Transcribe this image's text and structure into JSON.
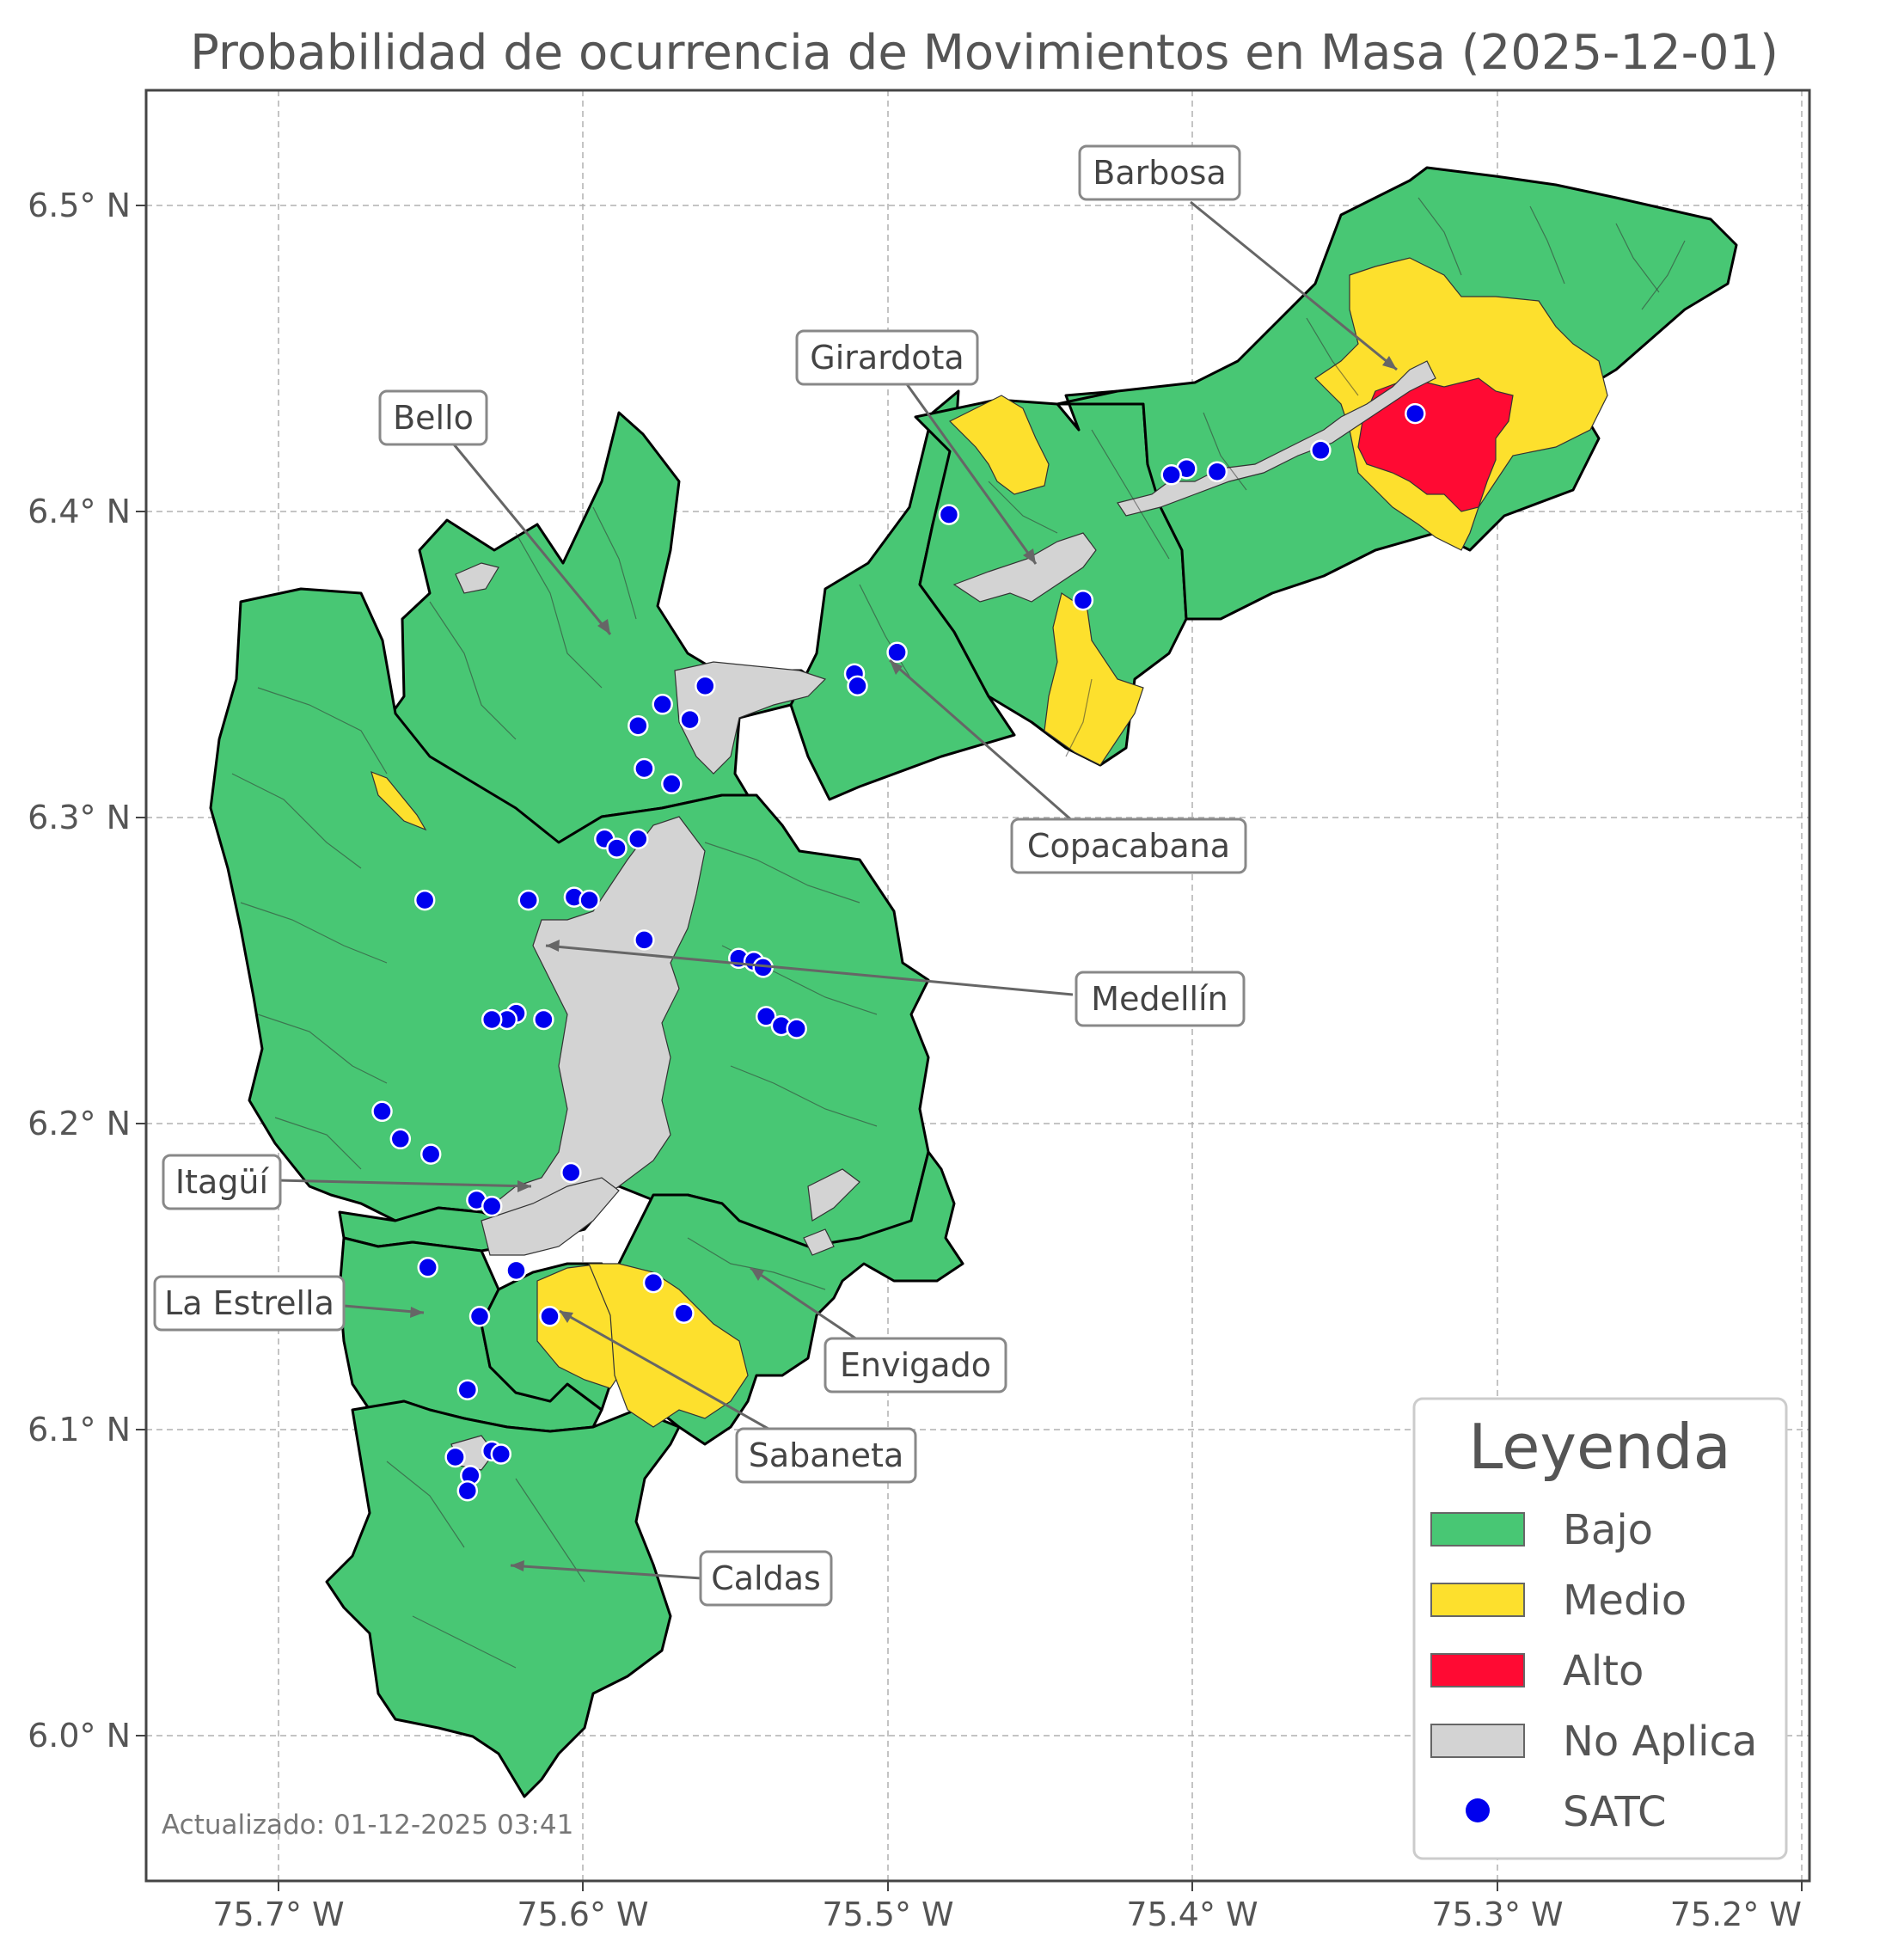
{
  "title": "Probabilidad de ocurrencia de Movimientos en Masa (2025-12-01)",
  "footer": "Actualizado: 01-12-2025 03:41",
  "axes": {
    "x_ticks": [
      "75.7° W",
      "75.6° W",
      "75.5° W",
      "75.4° W",
      "75.3° W",
      "75.2° W"
    ],
    "y_ticks": [
      "6.5° N",
      "6.4° N",
      "6.3° N",
      "6.2° N",
      "6.1° N",
      "6.0° N"
    ]
  },
  "colors": {
    "bajo": "#48c774",
    "medio": "#fde02d",
    "alto": "#ff0a33",
    "no_aplica": "#d3d3d3",
    "satc": "#0000ee"
  },
  "legend": {
    "title": "Leyenda",
    "items": [
      {
        "label": "Bajo",
        "color": "#48c774",
        "kind": "patch"
      },
      {
        "label": "Medio",
        "color": "#fde02d",
        "kind": "patch"
      },
      {
        "label": "Alto",
        "color": "#ff0a33",
        "kind": "patch"
      },
      {
        "label": "No Aplica",
        "color": "#d3d3d3",
        "kind": "patch"
      },
      {
        "label": "SATC",
        "color": "#0000ee",
        "kind": "marker"
      }
    ]
  },
  "municipalities": [
    {
      "name": "Barbosa"
    },
    {
      "name": "Girardota"
    },
    {
      "name": "Bello"
    },
    {
      "name": "Copacabana"
    },
    {
      "name": "Medellín"
    },
    {
      "name": "Itagüí"
    },
    {
      "name": "La Estrella"
    },
    {
      "name": "Envigado"
    },
    {
      "name": "Sabaneta"
    },
    {
      "name": "Caldas"
    }
  ],
  "satc_stations": [
    [
      -75.327,
      6.432
    ],
    [
      -75.358,
      6.42
    ],
    [
      -75.392,
      6.413
    ],
    [
      -75.402,
      6.414
    ],
    [
      -75.407,
      6.412
    ],
    [
      -75.48,
      6.399
    ],
    [
      -75.436,
      6.371
    ],
    [
      -75.497,
      6.354
    ],
    [
      -75.511,
      6.347
    ],
    [
      -75.51,
      6.343
    ],
    [
      -75.56,
      6.343
    ],
    [
      -75.565,
      6.332
    ],
    [
      -75.574,
      6.337
    ],
    [
      -75.582,
      6.33
    ],
    [
      -75.58,
      6.316
    ],
    [
      -75.571,
      6.311
    ],
    [
      -75.593,
      6.293
    ],
    [
      -75.589,
      6.29
    ],
    [
      -75.582,
      6.293
    ],
    [
      -75.652,
      6.273
    ],
    [
      -75.618,
      6.273
    ],
    [
      -75.603,
      6.274
    ],
    [
      -75.598,
      6.273
    ],
    [
      -75.58,
      6.26
    ],
    [
      -75.549,
      6.254
    ],
    [
      -75.544,
      6.253
    ],
    [
      -75.541,
      6.251
    ],
    [
      -75.54,
      6.235
    ],
    [
      -75.535,
      6.232
    ],
    [
      -75.53,
      6.231
    ],
    [
      -75.622,
      6.236
    ],
    [
      -75.625,
      6.234
    ],
    [
      -75.63,
      6.234
    ],
    [
      -75.613,
      6.234
    ],
    [
      -75.666,
      6.204
    ],
    [
      -75.66,
      6.195
    ],
    [
      -75.65,
      6.19
    ],
    [
      -75.604,
      6.184
    ],
    [
      -75.635,
      6.175
    ],
    [
      -75.63,
      6.173
    ],
    [
      -75.651,
      6.153
    ],
    [
      -75.622,
      6.152
    ],
    [
      -75.577,
      6.148
    ],
    [
      -75.567,
      6.138
    ],
    [
      -75.611,
      6.137
    ],
    [
      -75.634,
      6.137
    ],
    [
      -75.638,
      6.113
    ],
    [
      -75.642,
      6.091
    ],
    [
      -75.63,
      6.093
    ],
    [
      -75.627,
      6.092
    ],
    [
      -75.637,
      6.085
    ],
    [
      -75.638,
      6.08
    ]
  ]
}
